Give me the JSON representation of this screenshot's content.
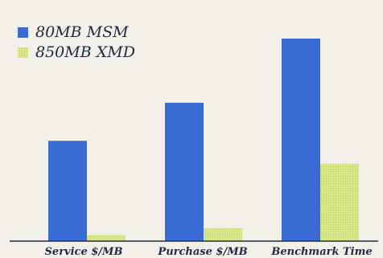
{
  "chart_data": {
    "type": "bar",
    "title": "",
    "xlabel": "",
    "ylabel": "",
    "categories": [
      "Service $/MB",
      "Purchase $/MB",
      "Benchmark Time"
    ],
    "series": [
      {
        "name": "80MB MSM",
        "values": [
          100,
          138,
          202
        ],
        "color": "#3a6bd4"
      },
      {
        "name": "850MB XMD",
        "values": [
          6,
          13,
          77
        ],
        "color": "#d9e88a"
      }
    ],
    "ylim": [
      0,
      210
    ],
    "grid": false,
    "legend": "top-left"
  }
}
